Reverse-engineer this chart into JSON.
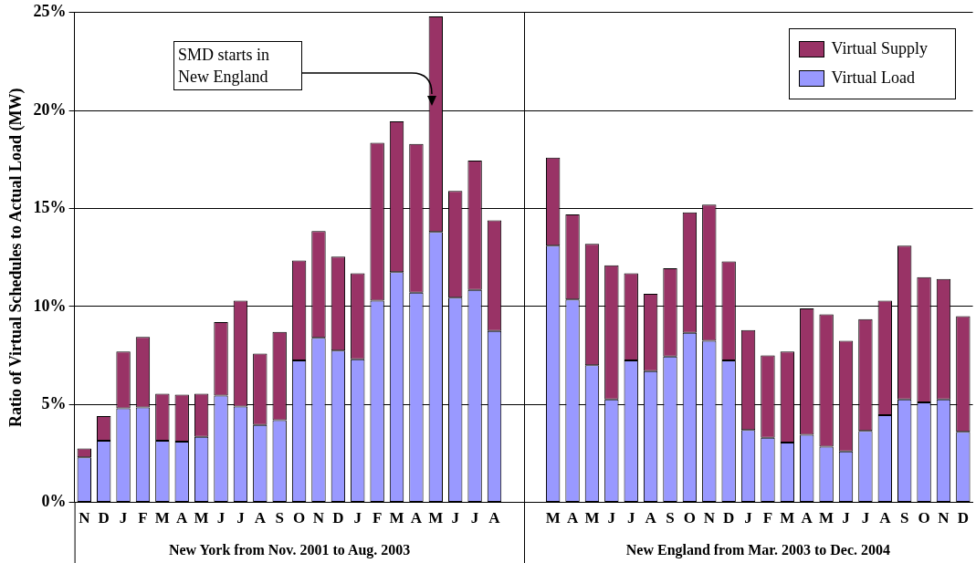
{
  "chart_data": {
    "type": "bar",
    "stacked": true,
    "ylabel": "Ratio of Virtual Schedules to Actual Load (MW)",
    "categories": [
      "N",
      "D",
      "J",
      "F",
      "M",
      "A",
      "M",
      "J",
      "J",
      "A",
      "S",
      "O",
      "N",
      "D",
      "J",
      "F",
      "M",
      "A",
      "M",
      "J",
      "J",
      "A",
      null,
      null,
      "M",
      "A",
      "M",
      "J",
      "J",
      "A",
      "S",
      "O",
      "N",
      "D",
      "J",
      "F",
      "M",
      "A",
      "M",
      "J",
      "J",
      "A",
      "S",
      "O",
      "N",
      "D"
    ],
    "series": [
      {
        "name": "Virtual Load",
        "color": "#9999ff",
        "values": [
          2.3,
          3.15,
          4.8,
          4.85,
          3.15,
          3.1,
          3.35,
          5.45,
          4.9,
          3.95,
          4.2,
          7.25,
          8.4,
          7.75,
          7.3,
          10.3,
          11.75,
          10.7,
          13.8,
          10.45,
          10.85,
          8.75,
          null,
          null,
          13.1,
          10.35,
          7.0,
          5.25,
          7.25,
          6.7,
          7.45,
          8.65,
          8.25,
          7.25,
          3.7,
          3.3,
          3.05,
          3.45,
          2.85,
          2.6,
          3.65,
          4.45,
          5.25,
          5.1,
          5.25,
          3.6
        ]
      },
      {
        "name": "Virtual Supply",
        "color": "#993366",
        "values": [
          0.45,
          1.25,
          2.9,
          3.6,
          2.4,
          2.4,
          2.2,
          3.75,
          5.4,
          3.65,
          4.5,
          5.1,
          5.45,
          4.8,
          4.4,
          8.05,
          7.7,
          7.6,
          11.0,
          5.45,
          6.6,
          5.65,
          null,
          null,
          4.5,
          4.35,
          6.2,
          6.85,
          4.45,
          3.95,
          4.5,
          6.15,
          6.95,
          5.05,
          5.1,
          4.2,
          4.65,
          6.45,
          6.75,
          5.65,
          5.7,
          5.85,
          7.85,
          6.4,
          6.15,
          5.9
        ]
      }
    ],
    "ylim": [
      0,
      25
    ],
    "yticks": [
      {
        "value": 0,
        "label": "0%"
      },
      {
        "value": 5,
        "label": "5%"
      },
      {
        "value": 10,
        "label": "10%"
      },
      {
        "value": 15,
        "label": "15%"
      },
      {
        "value": 20,
        "label": "20%"
      },
      {
        "value": 25,
        "label": "25%"
      }
    ],
    "grid": "y",
    "legend": "top right",
    "annotations": [
      "SMD starts in New England",
      "New York from Nov. 2001 to Aug. 2003",
      "New England from Mar. 2003 to Dec. 2004"
    ]
  }
}
